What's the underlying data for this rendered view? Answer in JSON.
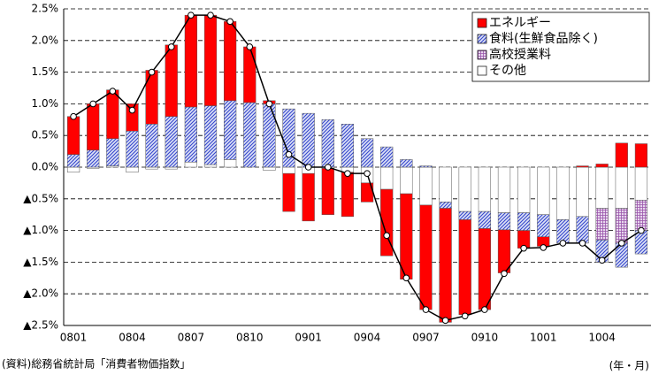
{
  "chart_data": {
    "type": "bar",
    "categories": [
      "0801",
      null,
      null,
      "0804",
      null,
      null,
      "0807",
      null,
      null,
      "0810",
      null,
      null,
      "0901",
      null,
      null,
      "0904",
      null,
      null,
      "0907",
      null,
      null,
      "0910",
      null,
      null,
      "1001",
      null,
      null,
      "1004",
      null,
      null
    ],
    "series": [
      {
        "name": "エネルギー",
        "color": "#ff0000",
        "pattern": "solid",
        "values": [
          0.6,
          0.73,
          0.77,
          0.43,
          0.85,
          1.13,
          1.45,
          1.43,
          1.25,
          0.88,
          0.05,
          -0.6,
          -0.75,
          -0.73,
          -0.7,
          -0.3,
          -1.05,
          -1.35,
          -1.65,
          -1.8,
          -1.5,
          -1.28,
          -0.68,
          -0.28,
          -0.15,
          0.0,
          0.02,
          0.05,
          0.38,
          0.37
        ]
      },
      {
        "name": "食料(生鮮食品除く)",
        "color": "#3344cc",
        "pattern": "hatch",
        "values": [
          0.2,
          0.27,
          0.43,
          0.57,
          0.68,
          0.8,
          0.87,
          0.93,
          0.93,
          1.02,
          1.0,
          0.92,
          0.85,
          0.75,
          0.68,
          0.45,
          0.32,
          0.12,
          0.02,
          -0.1,
          -0.13,
          -0.27,
          -0.27,
          -0.28,
          -0.35,
          -0.37,
          -0.42,
          -0.35,
          -0.38,
          -0.37
        ]
      },
      {
        "name": "高校授業料",
        "color": "#9955aa",
        "pattern": "grid",
        "values": [
          null,
          null,
          null,
          null,
          null,
          null,
          null,
          null,
          null,
          null,
          null,
          null,
          null,
          null,
          null,
          null,
          null,
          null,
          null,
          null,
          null,
          null,
          null,
          null,
          null,
          null,
          null,
          -0.5,
          -0.55,
          -0.48
        ]
      },
      {
        "name": "その他",
        "color": "#ffffff",
        "pattern": "solid",
        "values": [
          -0.08,
          -0.02,
          0.02,
          -0.08,
          -0.03,
          -0.03,
          0.08,
          0.04,
          0.12,
          0.0,
          -0.05,
          -0.1,
          -0.1,
          -0.02,
          -0.08,
          -0.25,
          -0.35,
          -0.42,
          -0.6,
          -0.55,
          -0.7,
          -0.7,
          -0.72,
          -0.72,
          -0.75,
          -0.83,
          -0.78,
          -0.65,
          -0.65,
          -0.52
        ]
      }
    ],
    "total": {
      "color": "#000000",
      "values": [
        0.8,
        1.0,
        1.2,
        0.9,
        1.5,
        1.9,
        2.4,
        2.4,
        2.3,
        1.9,
        1.0,
        0.2,
        0.0,
        0.0,
        -0.1,
        -0.1,
        -1.08,
        -1.75,
        -2.25,
        -2.42,
        -2.35,
        -2.25,
        -1.68,
        -1.28,
        -1.27,
        -1.2,
        -1.2,
        -1.47,
        -1.2,
        -1.0
      ]
    },
    "ylim": [
      -2.5,
      2.5
    ],
    "yticks": [
      {
        "value": -2.5,
        "label": "▲2.5%"
      },
      {
        "value": -2.0,
        "label": "▲2.0%"
      },
      {
        "value": -1.5,
        "label": "▲1.5%"
      },
      {
        "value": -1.0,
        "label": "▲1.0%"
      },
      {
        "value": -0.5,
        "label": "▲0.5%"
      },
      {
        "value": 0.0,
        "label": "0.0%"
      },
      {
        "value": 0.5,
        "label": "0.5%"
      },
      {
        "value": 1.0,
        "label": "1.0%"
      },
      {
        "value": 1.5,
        "label": "1.5%"
      },
      {
        "value": 2.0,
        "label": "2.0%"
      },
      {
        "value": 2.5,
        "label": "2.5%"
      }
    ],
    "grid": true,
    "legend": "upper right",
    "source": "(資料)総務省統計局「消費者物価指数」",
    "x_unit": "(年・月)"
  }
}
